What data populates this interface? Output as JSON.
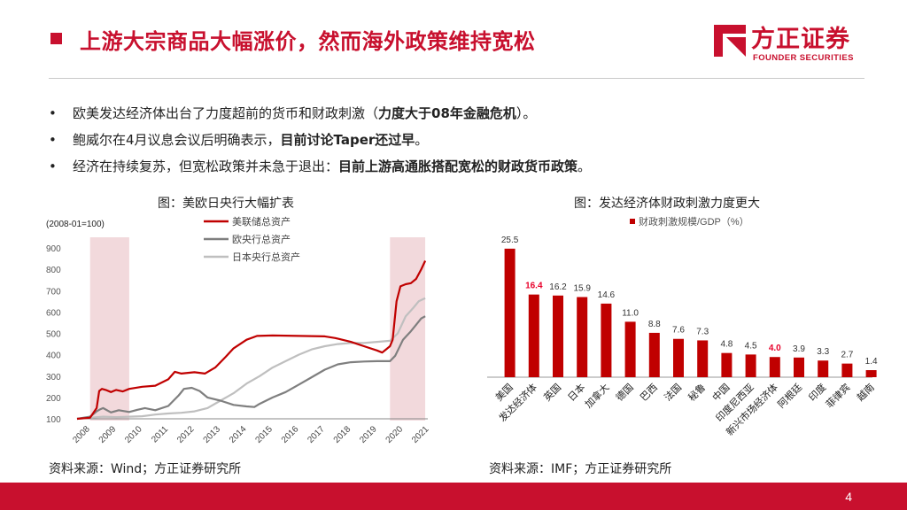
{
  "header": {
    "title": "上游大宗商品大幅涨价，然而海外政策维持宽松",
    "logo_cn": "方正证券",
    "logo_en": "FOUNDER SECURITIES"
  },
  "bullets": [
    {
      "marker": "•",
      "text": "欧美发达经济体出台了力度超前的货币和财政刺激（",
      "bold": "力度大于08年金融危机",
      "tail": "）。"
    },
    {
      "marker": "•",
      "text": "鲍威尔在4月议息会议后明确表示，",
      "bold": "目前讨论Taper还过早",
      "tail": "。"
    },
    {
      "marker": "•",
      "text": "经济在持续复苏，但宽松政策并未急于退出：",
      "bold": "目前上游高通胀搭配宽松的财政货币政策",
      "tail": "。"
    }
  ],
  "left_chart": {
    "caption": "图：美欧日央行大幅扩表",
    "source": "资料来源：Wind；方正证券研究所"
  },
  "right_chart": {
    "caption": "图：发达经济体财政刺激力度更大",
    "source": "资料来源：IMF；方正证券研究所"
  },
  "page": {
    "number": "4"
  },
  "colors": {
    "accent": "#c8102e",
    "fed": "#c00000",
    "ecb": "#7f7f7f",
    "boj": "#bfbfbf",
    "shade": "#f2d9dc",
    "bar": "#c00000"
  },
  "chart_data": [
    {
      "type": "line",
      "title": "图：美欧日央行大幅扩表",
      "unit_note": "(2008-01=100)",
      "x_ticks": [
        "2008",
        "2009",
        "2010",
        "2011",
        "2012",
        "2013",
        "2014",
        "2015",
        "2016",
        "2017",
        "2018",
        "2019",
        "2020",
        "2021"
      ],
      "x_range": [
        2008.0,
        2021.45
      ],
      "ylim": [
        100,
        900
      ],
      "y_ticks": [
        "100",
        "200",
        "300",
        "400",
        "500",
        "600",
        "700",
        "800",
        "900"
      ],
      "legend_position": "top",
      "shaded_periods": [
        [
          2008.5,
          2010.0
        ],
        [
          2020.0,
          2021.35
        ]
      ],
      "series": [
        {
          "name": "美联储总资产",
          "color": "#c00000",
          "points": [
            [
              2008.0,
              100
            ],
            [
              2008.5,
              105
            ],
            [
              2008.75,
              150
            ],
            [
              2008.85,
              230
            ],
            [
              2008.95,
              240
            ],
            [
              2009.1,
              235
            ],
            [
              2009.3,
              225
            ],
            [
              2009.5,
              235
            ],
            [
              2009.75,
              228
            ],
            [
              2010.0,
              240
            ],
            [
              2010.5,
              250
            ],
            [
              2011.0,
              255
            ],
            [
              2011.5,
              285
            ],
            [
              2011.75,
              320
            ],
            [
              2012.0,
              312
            ],
            [
              2012.5,
              318
            ],
            [
              2012.9,
              312
            ],
            [
              2013.3,
              340
            ],
            [
              2013.7,
              390
            ],
            [
              2014.0,
              430
            ],
            [
              2014.5,
              470
            ],
            [
              2014.9,
              488
            ],
            [
              2015.5,
              490
            ],
            [
              2016.5,
              488
            ],
            [
              2017.5,
              486
            ],
            [
              2017.9,
              478
            ],
            [
              2018.5,
              460
            ],
            [
              2019.0,
              440
            ],
            [
              2019.5,
              420
            ],
            [
              2019.7,
              410
            ],
            [
              2019.85,
              425
            ],
            [
              2020.0,
              440
            ],
            [
              2020.1,
              470
            ],
            [
              2020.25,
              650
            ],
            [
              2020.4,
              720
            ],
            [
              2020.6,
              730
            ],
            [
              2020.8,
              735
            ],
            [
              2021.0,
              755
            ],
            [
              2021.2,
              800
            ],
            [
              2021.35,
              840
            ]
          ]
        },
        {
          "name": "欧央行总资产",
          "color": "#7f7f7f",
          "points": [
            [
              2008.0,
              100
            ],
            [
              2008.5,
              110
            ],
            [
              2008.75,
              135
            ],
            [
              2008.9,
              145
            ],
            [
              2009.0,
              150
            ],
            [
              2009.3,
              130
            ],
            [
              2009.6,
              140
            ],
            [
              2010.0,
              132
            ],
            [
              2010.3,
              142
            ],
            [
              2010.6,
              150
            ],
            [
              2011.0,
              140
            ],
            [
              2011.5,
              160
            ],
            [
              2011.9,
              210
            ],
            [
              2012.1,
              240
            ],
            [
              2012.4,
              245
            ],
            [
              2012.7,
              230
            ],
            [
              2013.0,
              200
            ],
            [
              2013.5,
              185
            ],
            [
              2014.0,
              165
            ],
            [
              2014.5,
              158
            ],
            [
              2014.8,
              155
            ],
            [
              2015.0,
              170
            ],
            [
              2015.5,
              200
            ],
            [
              2016.0,
              225
            ],
            [
              2016.5,
              260
            ],
            [
              2017.0,
              295
            ],
            [
              2017.5,
              330
            ],
            [
              2018.0,
              355
            ],
            [
              2018.5,
              365
            ],
            [
              2019.0,
              368
            ],
            [
              2019.5,
              370
            ],
            [
              2020.0,
              370
            ],
            [
              2020.2,
              395
            ],
            [
              2020.5,
              470
            ],
            [
              2020.8,
              510
            ],
            [
              2021.0,
              540
            ],
            [
              2021.2,
              570
            ],
            [
              2021.35,
              580
            ]
          ]
        },
        {
          "name": "日本央行总资产",
          "color": "#bfbfbf",
          "points": [
            [
              2008.0,
              100
            ],
            [
              2008.5,
              105
            ],
            [
              2009.0,
              110
            ],
            [
              2009.5,
              108
            ],
            [
              2010.0,
              110
            ],
            [
              2010.5,
              112
            ],
            [
              2011.0,
              120
            ],
            [
              2011.5,
              125
            ],
            [
              2012.0,
              128
            ],
            [
              2012.5,
              135
            ],
            [
              2013.0,
              150
            ],
            [
              2013.5,
              185
            ],
            [
              2014.0,
              220
            ],
            [
              2014.5,
              265
            ],
            [
              2015.0,
              300
            ],
            [
              2015.5,
              340
            ],
            [
              2016.0,
              370
            ],
            [
              2016.5,
              400
            ],
            [
              2017.0,
              425
            ],
            [
              2017.5,
              440
            ],
            [
              2018.0,
              450
            ],
            [
              2018.5,
              455
            ],
            [
              2019.0,
              455
            ],
            [
              2019.5,
              460
            ],
            [
              2020.0,
              465
            ],
            [
              2020.3,
              500
            ],
            [
              2020.6,
              580
            ],
            [
              2020.9,
              620
            ],
            [
              2021.1,
              650
            ],
            [
              2021.35,
              665
            ]
          ]
        }
      ]
    },
    {
      "type": "bar",
      "title": "图：发达经济体财政刺激力度更大",
      "legend": "财政刺激规模/GDP（%）",
      "legend_position": "top",
      "ylim": [
        0,
        26
      ],
      "categories": [
        "美国",
        "发达经济体",
        "英国",
        "日本",
        "加拿大",
        "德国",
        "巴西",
        "法国",
        "秘鲁",
        "中国",
        "印度尼西亚",
        "新兴市场经济体",
        "阿根廷",
        "印度",
        "菲律宾",
        "越南"
      ],
      "values": [
        25.5,
        16.4,
        16.2,
        15.9,
        14.6,
        11.0,
        8.8,
        7.6,
        7.3,
        4.8,
        4.5,
        4.0,
        3.9,
        3.3,
        2.7,
        1.4
      ],
      "value_labels": [
        "25.5",
        "16.4",
        "16.2",
        "15.9",
        "14.6",
        "11.0",
        "8.8",
        "7.6",
        "7.3",
        "4.8",
        "4.5",
        "4.0",
        "3.9",
        "3.3",
        "2.7",
        "1.4"
      ],
      "highlight_label_color": "#e8002a",
      "highlighted": [
        1,
        11
      ]
    }
  ]
}
